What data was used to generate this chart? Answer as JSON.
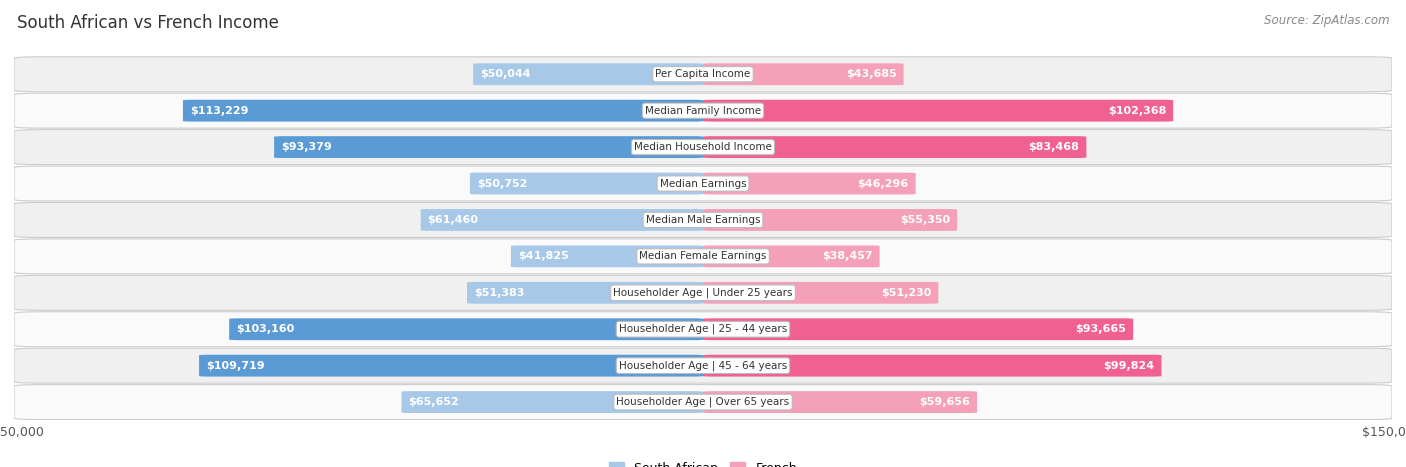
{
  "title": "South African vs French Income",
  "source": "Source: ZipAtlas.com",
  "categories": [
    "Per Capita Income",
    "Median Family Income",
    "Median Household Income",
    "Median Earnings",
    "Median Male Earnings",
    "Median Female Earnings",
    "Householder Age | Under 25 years",
    "Householder Age | 25 - 44 years",
    "Householder Age | 45 - 64 years",
    "Householder Age | Over 65 years"
  ],
  "south_african": [
    50044,
    113229,
    93379,
    50752,
    61460,
    41825,
    51383,
    103160,
    109719,
    65652
  ],
  "french": [
    43685,
    102368,
    83468,
    46296,
    55350,
    38457,
    51230,
    93665,
    99824,
    59656
  ],
  "max_val": 150000,
  "blue_light": "#a8c8e8",
  "blue_dark": "#5b9bd5",
  "pink_light": "#f4a0b8",
  "pink_dark": "#f06090",
  "blue_threshold": 70000,
  "pink_threshold": 70000,
  "blue_label": "South African",
  "pink_label": "French",
  "row_bg_even": "#f0f0f0",
  "row_bg_odd": "#fafafa",
  "label_box_color": "#ffffff",
  "title_fontsize": 12,
  "source_fontsize": 8.5,
  "bar_label_fontsize": 8,
  "category_fontsize": 7.5,
  "axis_label_fontsize": 9,
  "inside_threshold": 0.18
}
